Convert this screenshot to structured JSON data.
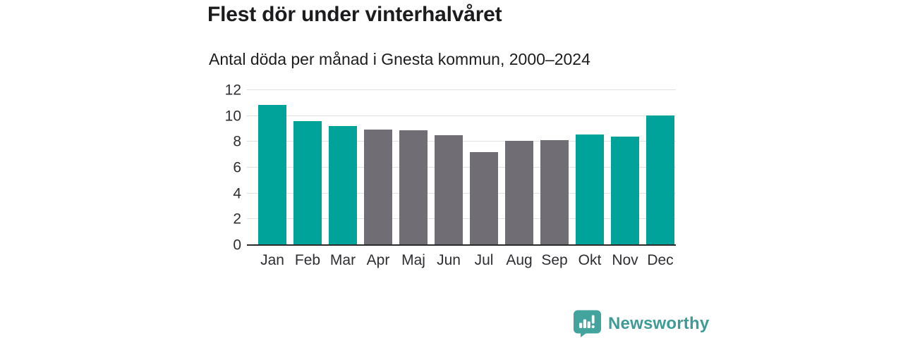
{
  "header": {
    "title": "Flest dör under vinterhalvåret",
    "subtitle": "Antal döda per månad i Gnesta kommun, 2000–2024"
  },
  "chart_data": {
    "type": "bar",
    "title": "Flest dör under vinterhalvåret",
    "subtitle": "Antal döda per månad i Gnesta kommun, 2000–2024",
    "categories": [
      "Jan",
      "Feb",
      "Mar",
      "Apr",
      "Maj",
      "Jun",
      "Jul",
      "Aug",
      "Sep",
      "Okt",
      "Nov",
      "Dec"
    ],
    "values": [
      10.8,
      9.55,
      9.15,
      8.9,
      8.85,
      8.45,
      7.15,
      8.0,
      8.05,
      8.5,
      8.35,
      10.0
    ],
    "seasons": [
      "winter",
      "winter",
      "winter",
      "summer",
      "summer",
      "summer",
      "summer",
      "summer",
      "summer",
      "winter",
      "winter",
      "winter"
    ],
    "xlabel": "",
    "ylabel": "",
    "ylim": [
      0,
      12
    ],
    "yticks": [
      0,
      2,
      4,
      6,
      8,
      10,
      12
    ],
    "grid": true,
    "legend": false
  },
  "colors": {
    "winter_bar": "#00a39a",
    "summer_bar": "#706e74",
    "gridline": "#e1e1e1",
    "axis_line": "#2b2b2b",
    "text": "#1d1d20",
    "brand_bubble": "#43a49d",
    "brand_text": "#3d9c95"
  },
  "branding": {
    "logo_text": "Newsworthy"
  }
}
